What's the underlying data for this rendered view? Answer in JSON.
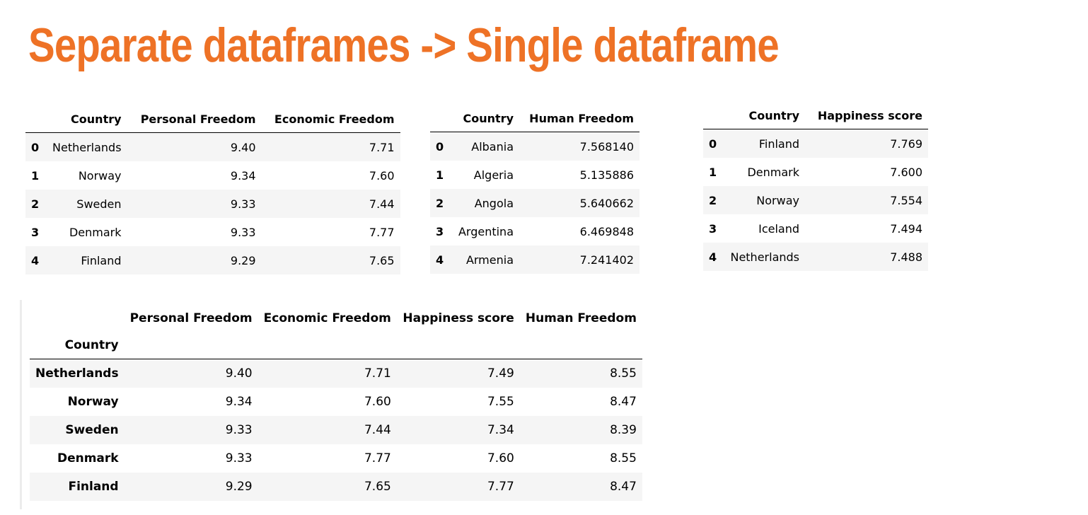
{
  "title": "Separate dataframes -> Single dataframe",
  "freedom_table": {
    "columns": [
      "",
      "Country",
      "Personal Freedom",
      "Economic Freedom"
    ],
    "rows": [
      {
        "index": "0",
        "country": "Netherlands",
        "personal": "9.40",
        "economic": "7.71"
      },
      {
        "index": "1",
        "country": "Norway",
        "personal": "9.34",
        "economic": "7.60"
      },
      {
        "index": "2",
        "country": "Sweden",
        "personal": "9.33",
        "economic": "7.44"
      },
      {
        "index": "3",
        "country": "Denmark",
        "personal": "9.33",
        "economic": "7.77"
      },
      {
        "index": "4",
        "country": "Finland",
        "personal": "9.29",
        "economic": "7.65"
      }
    ]
  },
  "human_freedom_table": {
    "columns": [
      "",
      "Country",
      "Human Freedom"
    ],
    "rows": [
      {
        "index": "0",
        "country": "Albania",
        "human": "7.568140"
      },
      {
        "index": "1",
        "country": "Algeria",
        "human": "5.135886"
      },
      {
        "index": "2",
        "country": "Angola",
        "human": "5.640662"
      },
      {
        "index": "3",
        "country": "Argentina",
        "human": "6.469848"
      },
      {
        "index": "4",
        "country": "Armenia",
        "human": "7.241402"
      }
    ]
  },
  "happiness_table": {
    "columns": [
      "",
      "Country",
      "Happiness score"
    ],
    "rows": [
      {
        "index": "0",
        "country": "Finland",
        "happiness": "7.769"
      },
      {
        "index": "1",
        "country": "Denmark",
        "happiness": "7.600"
      },
      {
        "index": "2",
        "country": "Norway",
        "happiness": "7.554"
      },
      {
        "index": "3",
        "country": "Iceland",
        "happiness": "7.494"
      },
      {
        "index": "4",
        "country": "Netherlands",
        "happiness": "7.488"
      }
    ]
  },
  "merged_table": {
    "columns": [
      "",
      "Personal Freedom",
      "Economic Freedom",
      "Happiness score",
      "Human Freedom"
    ],
    "index_name": "Country",
    "rows": [
      {
        "country": "Netherlands",
        "personal": "9.40",
        "economic": "7.71",
        "happiness": "7.49",
        "human": "8.55"
      },
      {
        "country": "Norway",
        "personal": "9.34",
        "economic": "7.60",
        "happiness": "7.55",
        "human": "8.47"
      },
      {
        "country": "Sweden",
        "personal": "9.33",
        "economic": "7.44",
        "happiness": "7.34",
        "human": "8.39"
      },
      {
        "country": "Denmark",
        "personal": "9.33",
        "economic": "7.77",
        "happiness": "7.60",
        "human": "8.55"
      },
      {
        "country": "Finland",
        "personal": "9.29",
        "economic": "7.65",
        "happiness": "7.77",
        "human": "8.47"
      }
    ]
  }
}
